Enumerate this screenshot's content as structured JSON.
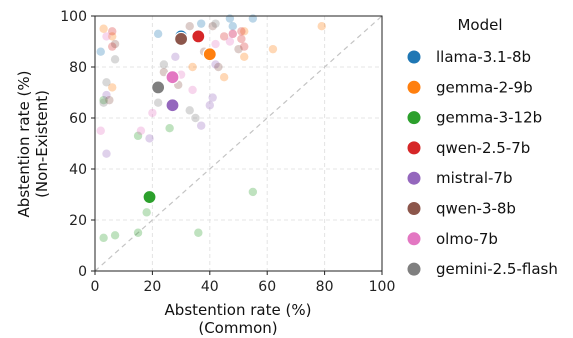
{
  "chart_data": {
    "type": "scatter",
    "xlabel_lines": [
      "Abstention rate (%)",
      "(Common)"
    ],
    "ylabel_lines": [
      "Abstention rate (%)",
      "(Non-Existent)"
    ],
    "xlim": [
      0,
      100
    ],
    "ylim": [
      0,
      100
    ],
    "x_ticks": [
      0,
      20,
      40,
      60,
      80,
      100
    ],
    "y_ticks": [
      0,
      20,
      40,
      60,
      80,
      100
    ],
    "grid": true,
    "diagonal_reference_line": true,
    "legend": {
      "title": "Model",
      "placement": "right"
    },
    "series": [
      {
        "name": "llama-3.1-8b",
        "color": "#1f77b4",
        "aggregate": [
          30,
          92
        ],
        "points": [
          [
            2,
            86
          ],
          [
            22,
            93
          ],
          [
            29,
            91
          ],
          [
            37,
            97
          ],
          [
            47,
            99
          ],
          [
            55,
            99
          ],
          [
            48,
            96
          ]
        ]
      },
      {
        "name": "gemma-2-9b",
        "color": "#ff7f0e",
        "aggregate": [
          40,
          85
        ],
        "points": [
          [
            3,
            95
          ],
          [
            6,
            92
          ],
          [
            6,
            72
          ],
          [
            34,
            80
          ],
          [
            45,
            76
          ],
          [
            52,
            84
          ],
          [
            62,
            87
          ],
          [
            79,
            96
          ],
          [
            52,
            94
          ]
        ]
      },
      {
        "name": "gemma-3-12b",
        "color": "#2ca02c",
        "aggregate": [
          19,
          29
        ],
        "points": [
          [
            3,
            67
          ],
          [
            3,
            13
          ],
          [
            7,
            14
          ],
          [
            15,
            53
          ],
          [
            15,
            15
          ],
          [
            18,
            23
          ],
          [
            26,
            56
          ],
          [
            36,
            15
          ],
          [
            55,
            31
          ]
        ]
      },
      {
        "name": "qwen-2.5-7b",
        "color": "#d62728",
        "aggregate": [
          36,
          92
        ],
        "points": [
          [
            6,
            94
          ],
          [
            6,
            88
          ],
          [
            45,
            92
          ],
          [
            48,
            93
          ],
          [
            51,
            94
          ],
          [
            51,
            91
          ],
          [
            52,
            88
          ]
        ]
      },
      {
        "name": "mistral-7b",
        "color": "#9467bd",
        "aggregate": [
          27,
          65
        ],
        "points": [
          [
            4,
            69
          ],
          [
            4,
            46
          ],
          [
            19,
            52
          ],
          [
            37,
            57
          ],
          [
            40,
            65
          ],
          [
            41,
            68
          ],
          [
            42,
            81
          ],
          [
            28,
            84
          ]
        ]
      },
      {
        "name": "qwen-3-8b",
        "color": "#8c564b",
        "aggregate": [
          30,
          91
        ],
        "points": [
          [
            5,
            67
          ],
          [
            7,
            89
          ],
          [
            24,
            78
          ],
          [
            29,
            73
          ],
          [
            33,
            96
          ],
          [
            38,
            86
          ],
          [
            43,
            80
          ],
          [
            50,
            87
          ],
          [
            41,
            96
          ]
        ]
      },
      {
        "name": "olmo-7b",
        "color": "#e377c2",
        "aggregate": [
          27,
          76
        ],
        "points": [
          [
            2,
            55
          ],
          [
            4,
            92
          ],
          [
            16,
            55
          ],
          [
            20,
            62
          ],
          [
            30,
            77
          ],
          [
            34,
            71
          ],
          [
            42,
            89
          ],
          [
            47,
            90
          ],
          [
            48,
            93
          ]
        ]
      },
      {
        "name": "gemini-2.5-flash",
        "color": "#7f7f7f",
        "aggregate": [
          22,
          72
        ],
        "points": [
          [
            3,
            66
          ],
          [
            4,
            74
          ],
          [
            7,
            83
          ],
          [
            22,
            66
          ],
          [
            24,
            81
          ],
          [
            33,
            63
          ],
          [
            35,
            60
          ],
          [
            42,
            97
          ]
        ]
      }
    ]
  }
}
